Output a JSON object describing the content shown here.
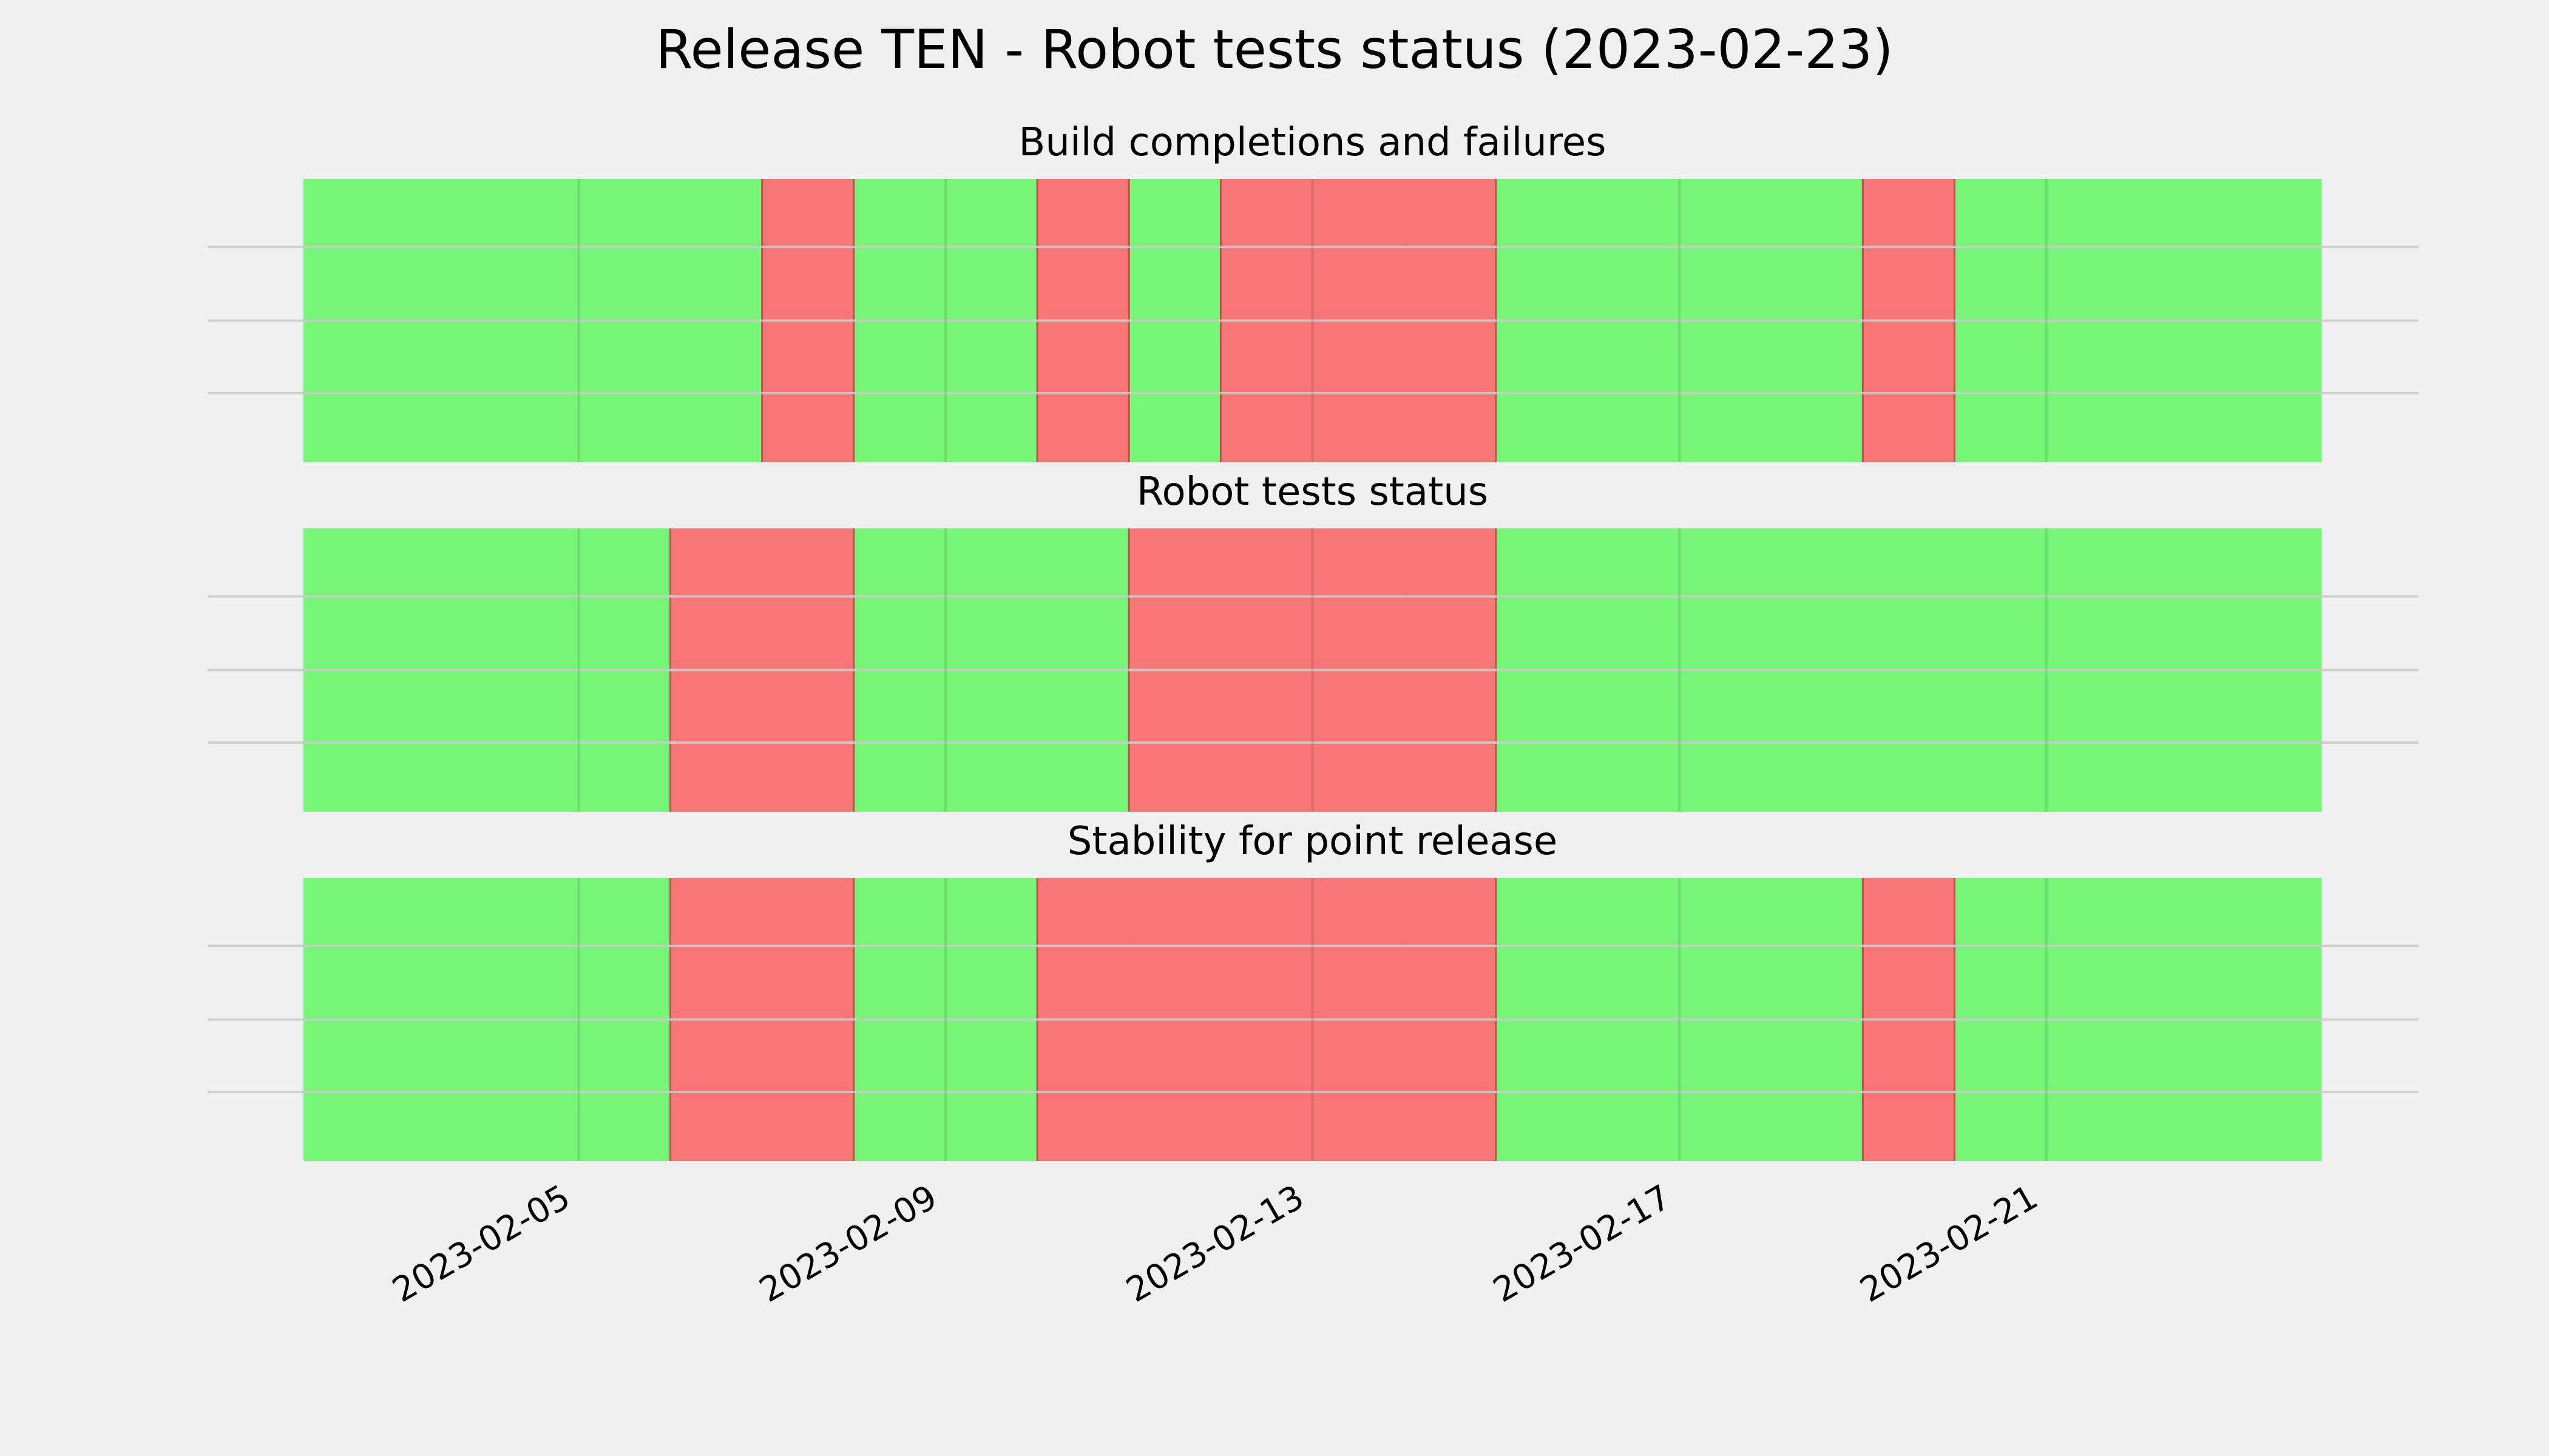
{
  "chart_data": {
    "type": "timeline",
    "title": "Release TEN - Robot tests status (2023-02-23)",
    "x_range": [
      "2023-02-02",
      "2023-02-24"
    ],
    "x_ticks": [
      "2023-02-05",
      "2023-02-09",
      "2023-02-13",
      "2023-02-17",
      "2023-02-21"
    ],
    "status_colors": {
      "pass": "#76f576",
      "fail": "#f77777"
    },
    "grid": true,
    "panels": [
      {
        "title": "Build completions and failures",
        "days": [
          {
            "date": "2023-02-02",
            "status": "pass"
          },
          {
            "date": "2023-02-03",
            "status": "pass"
          },
          {
            "date": "2023-02-04",
            "status": "pass"
          },
          {
            "date": "2023-02-05",
            "status": "pass"
          },
          {
            "date": "2023-02-06",
            "status": "pass"
          },
          {
            "date": "2023-02-07",
            "status": "fail"
          },
          {
            "date": "2023-02-08",
            "status": "pass"
          },
          {
            "date": "2023-02-09",
            "status": "pass"
          },
          {
            "date": "2023-02-10",
            "status": "fail"
          },
          {
            "date": "2023-02-11",
            "status": "pass"
          },
          {
            "date": "2023-02-12",
            "status": "fail"
          },
          {
            "date": "2023-02-13",
            "status": "fail"
          },
          {
            "date": "2023-02-14",
            "status": "fail"
          },
          {
            "date": "2023-02-15",
            "status": "pass"
          },
          {
            "date": "2023-02-16",
            "status": "pass"
          },
          {
            "date": "2023-02-17",
            "status": "pass"
          },
          {
            "date": "2023-02-18",
            "status": "pass"
          },
          {
            "date": "2023-02-19",
            "status": "fail"
          },
          {
            "date": "2023-02-20",
            "status": "pass"
          },
          {
            "date": "2023-02-21",
            "status": "pass"
          },
          {
            "date": "2023-02-22",
            "status": "pass"
          },
          {
            "date": "2023-02-23",
            "status": "pass"
          }
        ]
      },
      {
        "title": "Robot tests status",
        "days": [
          {
            "date": "2023-02-02",
            "status": "pass"
          },
          {
            "date": "2023-02-03",
            "status": "pass"
          },
          {
            "date": "2023-02-04",
            "status": "pass"
          },
          {
            "date": "2023-02-05",
            "status": "pass"
          },
          {
            "date": "2023-02-06",
            "status": "fail"
          },
          {
            "date": "2023-02-07",
            "status": "fail"
          },
          {
            "date": "2023-02-08",
            "status": "pass"
          },
          {
            "date": "2023-02-09",
            "status": "pass"
          },
          {
            "date": "2023-02-10",
            "status": "pass"
          },
          {
            "date": "2023-02-11",
            "status": "fail"
          },
          {
            "date": "2023-02-12",
            "status": "fail"
          },
          {
            "date": "2023-02-13",
            "status": "fail"
          },
          {
            "date": "2023-02-14",
            "status": "fail"
          },
          {
            "date": "2023-02-15",
            "status": "pass"
          },
          {
            "date": "2023-02-16",
            "status": "pass"
          },
          {
            "date": "2023-02-17",
            "status": "pass"
          },
          {
            "date": "2023-02-18",
            "status": "pass"
          },
          {
            "date": "2023-02-19",
            "status": "pass"
          },
          {
            "date": "2023-02-20",
            "status": "pass"
          },
          {
            "date": "2023-02-21",
            "status": "pass"
          },
          {
            "date": "2023-02-22",
            "status": "pass"
          },
          {
            "date": "2023-02-23",
            "status": "pass"
          }
        ]
      },
      {
        "title": "Stability for point release",
        "days": [
          {
            "date": "2023-02-02",
            "status": "pass"
          },
          {
            "date": "2023-02-03",
            "status": "pass"
          },
          {
            "date": "2023-02-04",
            "status": "pass"
          },
          {
            "date": "2023-02-05",
            "status": "pass"
          },
          {
            "date": "2023-02-06",
            "status": "fail"
          },
          {
            "date": "2023-02-07",
            "status": "fail"
          },
          {
            "date": "2023-02-08",
            "status": "pass"
          },
          {
            "date": "2023-02-09",
            "status": "pass"
          },
          {
            "date": "2023-02-10",
            "status": "fail"
          },
          {
            "date": "2023-02-11",
            "status": "fail"
          },
          {
            "date": "2023-02-12",
            "status": "fail"
          },
          {
            "date": "2023-02-13",
            "status": "fail"
          },
          {
            "date": "2023-02-14",
            "status": "fail"
          },
          {
            "date": "2023-02-15",
            "status": "pass"
          },
          {
            "date": "2023-02-16",
            "status": "pass"
          },
          {
            "date": "2023-02-17",
            "status": "pass"
          },
          {
            "date": "2023-02-18",
            "status": "pass"
          },
          {
            "date": "2023-02-19",
            "status": "fail"
          },
          {
            "date": "2023-02-20",
            "status": "pass"
          },
          {
            "date": "2023-02-21",
            "status": "pass"
          },
          {
            "date": "2023-02-22",
            "status": "pass"
          },
          {
            "date": "2023-02-23",
            "status": "pass"
          }
        ]
      }
    ]
  }
}
